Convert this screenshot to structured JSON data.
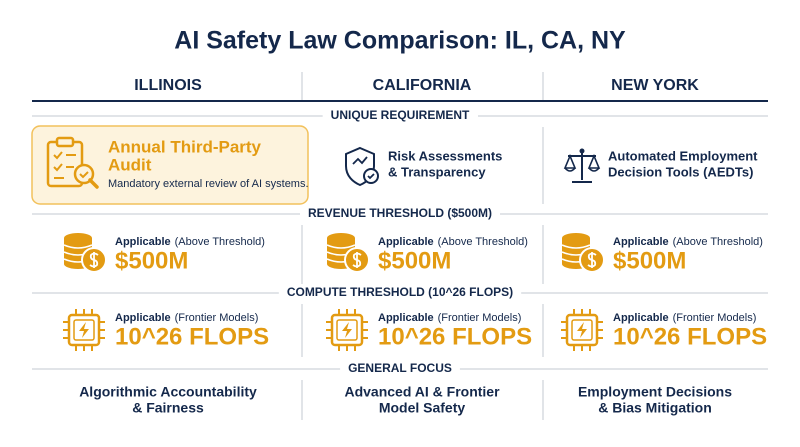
{
  "header": {
    "title": "AI Safety Law Comparison: IL, CA, NY"
  },
  "columns": [
    "ILLINOIS",
    "CALIFORNIA",
    "NEW YORK"
  ],
  "sections": [
    {
      "label": "UNIQUE REQUIREMENT",
      "cells": [
        {
          "title_lines": [
            "Annual Third-Party",
            "Audit"
          ],
          "description": "Mandatory external review of AI systems."
        },
        {
          "title_lines": [
            "Risk Assessments",
            "& Transparency"
          ]
        },
        {
          "title_lines": [
            "Automated Employment",
            "Decision Tools (AEDTs)"
          ]
        }
      ]
    },
    {
      "label": "REVENUE THRESHOLD ($500M)",
      "cells": [
        {
          "status": "Applicable",
          "note": "(Above Threshold)",
          "value": "$500M"
        },
        {
          "status": "Applicable",
          "note": "(Above Threshold)",
          "value": "$500M"
        },
        {
          "status": "Applicable",
          "note": "(Above Threshold)",
          "value": "$500M"
        }
      ]
    },
    {
      "label": "COMPUTE THRESHOLD (10^26 FLOPS)",
      "cells": [
        {
          "status": "Applicable",
          "note": "(Frontier Models)",
          "value": "10^26 FLOPS"
        },
        {
          "status": "Applicable",
          "note": "(Frontier Models)",
          "value": "10^26 FLOPS"
        },
        {
          "status": "Applicable",
          "note": "(Frontier Models)",
          "value": "10^26 FLOPS"
        }
      ]
    },
    {
      "label": "GENERAL FOCUS",
      "cells": [
        {
          "lines": [
            "Algorithmic Accountability",
            "& Fairness"
          ]
        },
        {
          "lines": [
            "Advanced AI & Frontier",
            "Model Safety"
          ]
        },
        {
          "lines": [
            "Employment Decisions",
            "& Bias Mitigation"
          ]
        }
      ]
    }
  ]
}
